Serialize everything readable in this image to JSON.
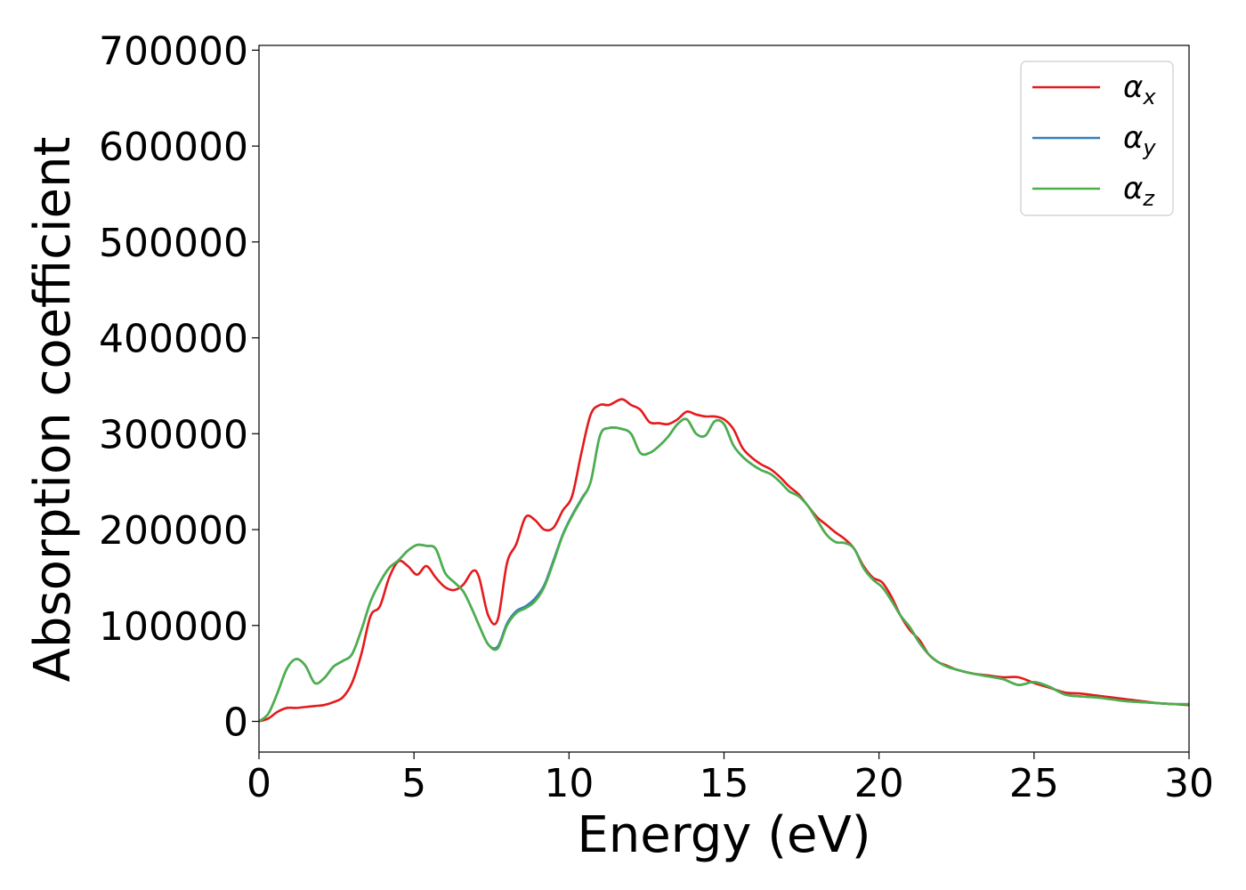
{
  "chart_data": {
    "type": "line",
    "title": "",
    "xlabel": "Energy (eV)",
    "ylabel": "Absorption coefficient",
    "xlim": [
      0,
      30
    ],
    "ylim": [
      -32000,
      705000
    ],
    "xticks": [
      0,
      5,
      10,
      15,
      20,
      25,
      30
    ],
    "yticks": [
      0,
      100000,
      200000,
      300000,
      400000,
      500000,
      600000,
      700000
    ],
    "grid": false,
    "legend_position": "top-right",
    "series": [
      {
        "name": "α_x",
        "label_main": "α",
        "label_sub": "x",
        "color": "#e41a1c",
        "x": [
          0,
          0.3,
          0.6,
          0.9,
          1.2,
          1.5,
          1.8,
          2.1,
          2.4,
          2.7,
          3.0,
          3.3,
          3.6,
          3.9,
          4.2,
          4.5,
          4.8,
          5.1,
          5.4,
          5.7,
          6.0,
          6.3,
          6.6,
          6.9,
          7.1,
          7.4,
          7.7,
          8.0,
          8.3,
          8.6,
          8.9,
          9.2,
          9.5,
          9.8,
          10.1,
          10.4,
          10.7,
          11.0,
          11.3,
          11.7,
          12.0,
          12.3,
          12.6,
          12.9,
          13.2,
          13.5,
          13.8,
          14.1,
          14.4,
          14.7,
          15.0,
          15.3,
          15.6,
          15.9,
          16.2,
          16.5,
          16.8,
          17.1,
          17.4,
          17.7,
          18.0,
          18.3,
          18.6,
          18.9,
          19.2,
          19.5,
          19.8,
          20.1,
          20.4,
          20.7,
          21.0,
          21.3,
          21.6,
          21.9,
          22.2,
          22.5,
          23.0,
          23.5,
          24.0,
          24.5,
          25.0,
          25.5,
          26.0,
          26.5,
          27.0,
          27.5,
          28.0,
          28.5,
          29.0,
          29.5,
          30.0
        ],
        "y": [
          0,
          3000,
          10000,
          14000,
          14000,
          15000,
          16000,
          17000,
          20000,
          25000,
          40000,
          70000,
          110000,
          120000,
          150000,
          167000,
          162000,
          153000,
          162000,
          150000,
          140000,
          137000,
          143000,
          157000,
          150000,
          110000,
          106000,
          165000,
          185000,
          213000,
          210000,
          200000,
          202000,
          220000,
          235000,
          280000,
          320000,
          330000,
          330000,
          336000,
          330000,
          325000,
          312000,
          311000,
          310000,
          315000,
          323000,
          320000,
          318000,
          318000,
          315000,
          305000,
          285000,
          275000,
          268000,
          263000,
          255000,
          245000,
          237000,
          225000,
          213000,
          205000,
          197000,
          190000,
          180000,
          162000,
          150000,
          145000,
          130000,
          110000,
          95000,
          85000,
          70000,
          62000,
          58000,
          54000,
          50000,
          48000,
          46000,
          46000,
          40000,
          35000,
          30000,
          29000,
          27000,
          25000,
          23000,
          21000,
          19000,
          18000,
          17000
        ]
      },
      {
        "name": "α_y",
        "label_main": "α",
        "label_sub": "y",
        "color": "#377eb8",
        "x": [
          0,
          0.3,
          0.6,
          0.9,
          1.2,
          1.5,
          1.8,
          2.1,
          2.4,
          2.7,
          3.0,
          3.3,
          3.6,
          3.9,
          4.2,
          4.5,
          4.8,
          5.1,
          5.4,
          5.7,
          6.0,
          6.3,
          6.6,
          6.9,
          7.1,
          7.4,
          7.7,
          8.0,
          8.3,
          8.6,
          8.9,
          9.2,
          9.5,
          9.8,
          10.1,
          10.4,
          10.7,
          11.0,
          11.3,
          11.7,
          12.0,
          12.3,
          12.6,
          12.9,
          13.2,
          13.5,
          13.8,
          14.1,
          14.4,
          14.7,
          15.0,
          15.3,
          15.6,
          15.9,
          16.2,
          16.5,
          16.8,
          17.1,
          17.4,
          17.7,
          18.0,
          18.3,
          18.6,
          18.9,
          19.2,
          19.5,
          19.8,
          20.1,
          20.4,
          20.7,
          21.0,
          21.3,
          21.6,
          21.9,
          22.2,
          22.5,
          23.0,
          23.5,
          24.0,
          24.5,
          25.0,
          25.5,
          26.0,
          26.5,
          27.0,
          27.5,
          28.0,
          28.5,
          29.0,
          29.5,
          30.0
        ],
        "y": [
          0,
          8000,
          30000,
          55000,
          65000,
          58000,
          40000,
          45000,
          57000,
          63000,
          70000,
          95000,
          125000,
          145000,
          160000,
          168000,
          178000,
          184000,
          183000,
          180000,
          155000,
          145000,
          135000,
          115000,
          100000,
          80000,
          78000,
          102000,
          115000,
          120000,
          128000,
          142000,
          168000,
          195000,
          215000,
          232000,
          250000,
          298000,
          306000,
          305000,
          300000,
          280000,
          280000,
          287000,
          297000,
          310000,
          315000,
          300000,
          298000,
          313000,
          310000,
          288000,
          276000,
          268000,
          262000,
          258000,
          250000,
          240000,
          235000,
          225000,
          210000,
          195000,
          187000,
          186000,
          180000,
          160000,
          148000,
          140000,
          126000,
          110000,
          98000,
          82000,
          70000,
          62000,
          57000,
          54000,
          50000,
          47000,
          44000,
          38000,
          41000,
          36000,
          28000,
          26000,
          25000,
          23000,
          21000,
          20000,
          19000,
          18000,
          18000
        ]
      },
      {
        "name": "α_z",
        "label_main": "α",
        "label_sub": "z",
        "color": "#4daf4a",
        "x": [
          0,
          0.3,
          0.6,
          0.9,
          1.2,
          1.5,
          1.8,
          2.1,
          2.4,
          2.7,
          3.0,
          3.3,
          3.6,
          3.9,
          4.2,
          4.5,
          4.8,
          5.1,
          5.4,
          5.7,
          6.0,
          6.3,
          6.6,
          6.9,
          7.1,
          7.4,
          7.7,
          8.0,
          8.3,
          8.6,
          8.9,
          9.2,
          9.5,
          9.8,
          10.1,
          10.4,
          10.7,
          11.0,
          11.3,
          11.7,
          12.0,
          12.3,
          12.6,
          12.9,
          13.2,
          13.5,
          13.8,
          14.1,
          14.4,
          14.7,
          15.0,
          15.3,
          15.6,
          15.9,
          16.2,
          16.5,
          16.8,
          17.1,
          17.4,
          17.7,
          18.0,
          18.3,
          18.6,
          18.9,
          19.2,
          19.5,
          19.8,
          20.1,
          20.4,
          20.7,
          21.0,
          21.3,
          21.6,
          21.9,
          22.2,
          22.5,
          23.0,
          23.5,
          24.0,
          24.5,
          25.0,
          25.5,
          26.0,
          26.5,
          27.0,
          27.5,
          28.0,
          28.5,
          29.0,
          29.5,
          30.0
        ],
        "y": [
          0,
          8000,
          30000,
          55000,
          65000,
          58000,
          40000,
          45000,
          57000,
          63000,
          70000,
          95000,
          125000,
          145000,
          160000,
          168000,
          178000,
          184000,
          183000,
          180000,
          155000,
          145000,
          135000,
          115000,
          100000,
          80000,
          76000,
          100000,
          113000,
          118000,
          125000,
          140000,
          166000,
          194000,
          214000,
          231000,
          250000,
          298000,
          306000,
          305000,
          300000,
          280000,
          280000,
          287000,
          297000,
          310000,
          315000,
          300000,
          298000,
          313000,
          310000,
          288000,
          276000,
          268000,
          262000,
          258000,
          250000,
          240000,
          235000,
          225000,
          210000,
          195000,
          187000,
          186000,
          180000,
          160000,
          148000,
          140000,
          126000,
          110000,
          98000,
          82000,
          70000,
          62000,
          57000,
          54000,
          50000,
          47000,
          44000,
          38000,
          41000,
          36000,
          28000,
          26000,
          25000,
          23000,
          21000,
          20000,
          19000,
          18000,
          18000
        ]
      }
    ]
  }
}
